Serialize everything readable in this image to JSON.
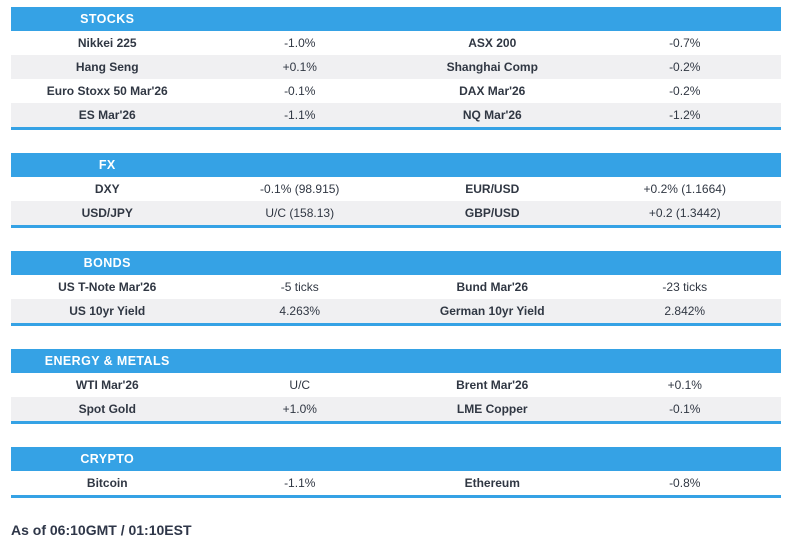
{
  "chart_data": [
    {
      "type": "table",
      "title": "STOCKS",
      "rows": [
        [
          "Nikkei 225",
          "-1.0%",
          "ASX 200",
          "-0.7%"
        ],
        [
          "Hang Seng",
          "+0.1%",
          "Shanghai Comp",
          "-0.2%"
        ],
        [
          "Euro Stoxx 50 Mar'26",
          "-0.1%",
          "DAX Mar'26",
          "-0.2%"
        ],
        [
          "ES Mar'26",
          "-1.1%",
          "NQ Mar'26",
          "-1.2%"
        ]
      ]
    },
    {
      "type": "table",
      "title": "FX",
      "rows": [
        [
          "DXY",
          "-0.1% (98.915)",
          "EUR/USD",
          "+0.2% (1.1664)"
        ],
        [
          "USD/JPY",
          "U/C (158.13)",
          "GBP/USD",
          "+0.2 (1.3442)"
        ]
      ]
    },
    {
      "type": "table",
      "title": "BONDS",
      "rows": [
        [
          "US T-Note Mar'26",
          "-5 ticks",
          "Bund Mar'26",
          "-23 ticks"
        ],
        [
          "US 10yr Yield",
          "4.263%",
          "German 10yr Yield",
          "2.842%"
        ]
      ]
    },
    {
      "type": "table",
      "title": "ENERGY & METALS",
      "rows": [
        [
          "WTI Mar'26",
          "U/C",
          "Brent Mar'26",
          "+0.1%"
        ],
        [
          "Spot Gold",
          "+1.0%",
          "LME Copper",
          "-0.1%"
        ]
      ]
    },
    {
      "type": "table",
      "title": "CRYPTO",
      "rows": [
        [
          "Bitcoin",
          "-1.1%",
          "Ethereum",
          "-0.8%"
        ]
      ]
    }
  ],
  "footer": {
    "as_of": "As of 06:10GMT / 01:10EST"
  },
  "colors": {
    "accent_blue": "#35A2E5",
    "row_alt_gray": "#F0F0F2",
    "text_dark": "#2E3648",
    "header_text": "#FFFFFF"
  }
}
